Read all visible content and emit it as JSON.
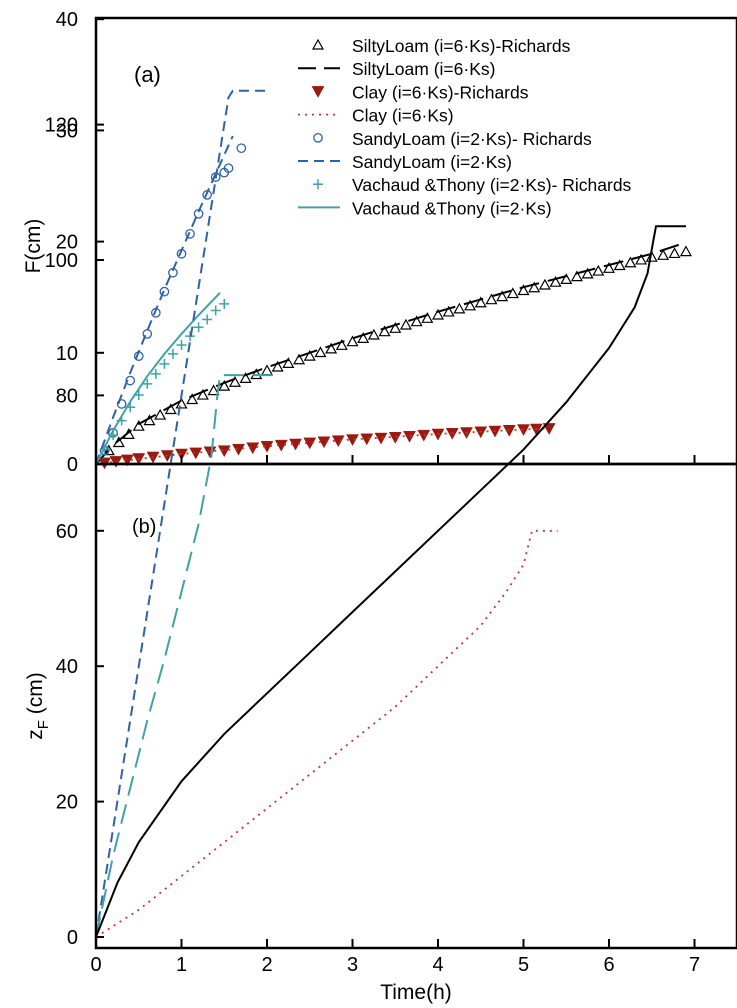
{
  "chart_data": [
    {
      "panel_label": "(a)",
      "type": "line",
      "ylabel": "F(cm)",
      "xlim": [
        0,
        7.5
      ],
      "ylim": [
        0,
        40
      ],
      "yticks": [
        0,
        10,
        20,
        30,
        40
      ],
      "legend_position": "top-right",
      "series": [
        {
          "name": "SiltyLoam (i=6·Ks)-Richards",
          "style": "triangle-open",
          "color": "#000000",
          "x": [
            0.15,
            0.5,
            1.0,
            1.5,
            2.0,
            2.5,
            3.0,
            3.5,
            4.0,
            4.5,
            5.0,
            5.5,
            6.0,
            6.5,
            6.9
          ],
          "y": [
            1.2,
            3.4,
            5.4,
            7.0,
            8.4,
            9.7,
            11.0,
            12.2,
            13.4,
            14.5,
            15.6,
            16.6,
            17.6,
            18.6,
            19.1
          ]
        },
        {
          "name": "SiltyLoam (i=6·Ks)",
          "style": "long-dash",
          "color": "#000000",
          "x": [
            0,
            0.2,
            0.5,
            1.0,
            1.5,
            2.0,
            2.5,
            3.0,
            3.5,
            4.0,
            4.5,
            5.0,
            5.5,
            6.0,
            6.5,
            6.85
          ],
          "y": [
            0,
            1.7,
            3.6,
            5.7,
            7.3,
            8.7,
            10.0,
            11.3,
            12.5,
            13.7,
            14.8,
            15.9,
            16.9,
            17.9,
            18.9,
            19.8
          ]
        },
        {
          "name": "Clay (i=6·Ks)-Richards",
          "style": "triangle-down-filled",
          "color": "#9b1a10",
          "x": [
            0.1,
            0.5,
            1.0,
            1.5,
            2.0,
            2.5,
            3.0,
            3.5,
            4.0,
            4.5,
            5.0,
            5.3
          ],
          "y": [
            0.1,
            0.5,
            0.9,
            1.2,
            1.6,
            1.9,
            2.2,
            2.4,
            2.7,
            2.9,
            3.1,
            3.2
          ]
        },
        {
          "name": "Clay (i=6·Ks)",
          "style": "dotted",
          "color": "#c0392b",
          "x": [
            0,
            1.0,
            2.0,
            3.0,
            4.0,
            5.0,
            5.3
          ],
          "y": [
            0,
            0.9,
            1.6,
            2.2,
            2.7,
            3.1,
            3.2
          ]
        },
        {
          "name": "SandyLoam (i=2·Ks)- Richards",
          "style": "circle-open",
          "color": "#2e62a8",
          "x": [
            0.1,
            0.2,
            0.3,
            0.4,
            0.5,
            0.6,
            0.7,
            0.8,
            0.9,
            1.0,
            1.1,
            1.2,
            1.3,
            1.4,
            1.5,
            1.55,
            1.7
          ],
          "y": [
            1.2,
            2.8,
            5.4,
            7.5,
            9.7,
            11.7,
            13.6,
            15.5,
            17.2,
            18.9,
            20.7,
            22.5,
            24.2,
            25.8,
            26.2,
            26.6,
            28.4
          ]
        },
        {
          "name": "SandyLoam (i=2·Ks)",
          "style": "dashed",
          "color": "#2e62a8",
          "x": [
            0,
            0.2,
            0.4,
            0.6,
            0.8,
            1.0,
            1.2,
            1.4,
            1.6
          ],
          "y": [
            0,
            4.2,
            8.2,
            12.0,
            15.7,
            19.2,
            22.7,
            26.1,
            29.5
          ]
        },
        {
          "name": "Vachaud &Thony (i=2·Ks)- Richards",
          "style": "plus",
          "color": "#3ea3a8",
          "x": [
            0.1,
            0.2,
            0.3,
            0.4,
            0.5,
            0.6,
            0.7,
            0.8,
            0.9,
            1.0,
            1.1,
            1.2,
            1.3,
            1.4,
            1.5
          ],
          "y": [
            1.3,
            2.6,
            3.9,
            5.1,
            6.2,
            7.2,
            8.1,
            9.0,
            9.9,
            10.7,
            11.5,
            12.3,
            13.0,
            13.8,
            14.4
          ]
        },
        {
          "name": "Vachaud &Thony (i=2·Ks)",
          "style": "solid",
          "color": "#3ea3a8",
          "x": [
            0,
            0.2,
            0.4,
            0.6,
            0.8,
            1.0,
            1.2,
            1.45
          ],
          "y": [
            0,
            3.0,
            5.6,
            7.9,
            9.9,
            11.7,
            13.4,
            15.4
          ]
        }
      ]
    },
    {
      "panel_label": "(b)",
      "type": "line",
      "xlabel": "Time(h)",
      "ylabel_main": "z",
      "ylabel_sub": "F",
      "ylabel_tail": " (cm)",
      "xlim": [
        0,
        7.5
      ],
      "ylim": [
        0,
        130
      ],
      "xticks": [
        0,
        1,
        2,
        3,
        4,
        5,
        6,
        7
      ],
      "yticks": [
        0,
        20,
        40,
        60,
        80,
        100,
        120
      ],
      "series": [
        {
          "style": "dashed",
          "color": "#2e62a8",
          "x": [
            0,
            0.2,
            0.4,
            0.6,
            0.8,
            1.0,
            1.2,
            1.4,
            1.55,
            1.6,
            2.0
          ],
          "y": [
            0,
            16,
            32,
            48,
            64,
            80,
            96,
            112,
            124,
            125,
            125
          ]
        },
        {
          "style": "long-dash",
          "color": "#3ea3a8",
          "x": [
            0,
            0.2,
            0.4,
            0.6,
            0.8,
            1.0,
            1.2,
            1.35,
            1.42,
            1.45,
            2.1
          ],
          "y": [
            0,
            12,
            22,
            32,
            41,
            51,
            61,
            71,
            80,
            83,
            83
          ]
        },
        {
          "style": "solid",
          "color": "#000000",
          "x": [
            0,
            0.25,
            0.5,
            1.0,
            1.5,
            2.0,
            2.5,
            3.0,
            3.5,
            4.0,
            4.5,
            5.0,
            5.5,
            6.0,
            6.3,
            6.45,
            6.52,
            6.55,
            6.9
          ],
          "y": [
            0,
            8,
            14,
            23,
            30,
            36,
            42,
            48,
            54,
            60,
            66,
            72,
            79,
            87,
            93,
            98,
            103,
            105,
            105
          ]
        },
        {
          "style": "dotted",
          "color": "#c0392b",
          "x": [
            0,
            0.5,
            1.0,
            1.5,
            2.0,
            2.5,
            3.0,
            3.5,
            4.0,
            4.5,
            4.8,
            5.0,
            5.1,
            5.4
          ],
          "y": [
            0,
            4,
            9,
            14,
            19,
            24,
            29,
            34,
            40,
            46,
            51,
            55,
            60,
            60
          ]
        }
      ]
    }
  ]
}
